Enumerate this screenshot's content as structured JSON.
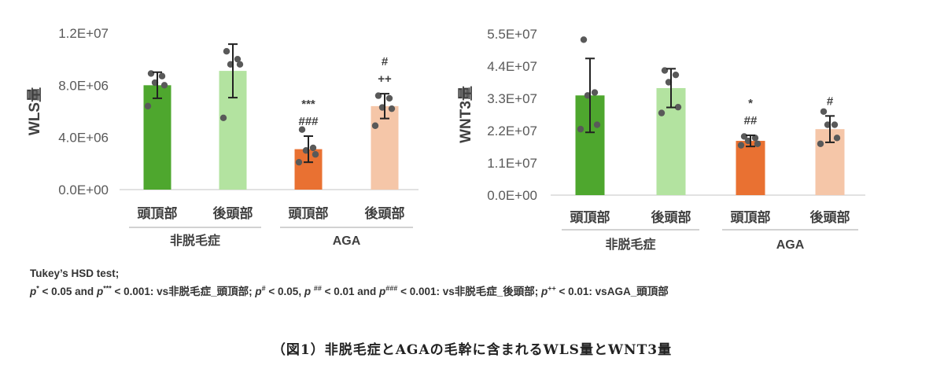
{
  "chart_data": [
    {
      "type": "bar",
      "ylabel": "WLS量",
      "ylim": [
        0,
        12000000
      ],
      "yticks": [
        "0.0E+00",
        "4.0E+06",
        "8.0E+06",
        "1.2E+07"
      ],
      "ytick_values": [
        0,
        4000000,
        8000000,
        12000000
      ],
      "categories": [
        "頭頂部",
        "後頭部",
        "頭頂部",
        "後頭部"
      ],
      "groups": [
        {
          "label": "非脱毛症",
          "span": [
            0,
            1
          ]
        },
        {
          "label": "AGA",
          "span": [
            2,
            3
          ]
        }
      ],
      "values": [
        8000000,
        9100000,
        3100000,
        6400000
      ],
      "errors": [
        1000000,
        2050000,
        1000000,
        950000
      ],
      "points": [
        [
          8900000,
          8700000,
          8200000,
          8000000,
          6400000
        ],
        [
          10600000,
          10000000,
          9600000,
          9600000,
          5500000
        ],
        [
          4600000,
          3200000,
          3000000,
          2700000,
          2100000
        ],
        [
          7200000,
          7000000,
          6300000,
          6200000,
          4900000
        ]
      ],
      "colors": [
        "#4ea72e",
        "#b3e3a0",
        "#e97132",
        "#f5c6a8"
      ],
      "annotations": [
        [],
        [],
        [
          "***",
          "###"
        ],
        [
          "#",
          "++"
        ]
      ]
    },
    {
      "type": "bar",
      "ylabel": "WNT3量",
      "ylim": [
        0,
        55000000
      ],
      "yticks": [
        "0.0E+00",
        "1.1E+07",
        "2.2E+07",
        "3.3E+07",
        "4.4E+07",
        "5.5E+07"
      ],
      "ytick_values": [
        0,
        11000000,
        22000000,
        33000000,
        44000000,
        55000000
      ],
      "categories": [
        "頭頂部",
        "後頭部",
        "頭頂部",
        "後頭部"
      ],
      "groups": [
        {
          "label": "非脱毛症",
          "span": [
            0,
            1
          ]
        },
        {
          "label": "AGA",
          "span": [
            2,
            3
          ]
        }
      ],
      "values": [
        34000000,
        36500000,
        18500000,
        22500000
      ],
      "errors": [
        12600000,
        6600000,
        1900000,
        4500000
      ],
      "points": [
        [
          53000000,
          35000000,
          34000000,
          24000000,
          22500000
        ],
        [
          42500000,
          41000000,
          38500000,
          30000000,
          28000000
        ],
        [
          20000000,
          19500000,
          18500000,
          17500000,
          17000000
        ],
        [
          28500000,
          24000000,
          24000000,
          19500000,
          17500000
        ]
      ],
      "colors": [
        "#4ea72e",
        "#b3e3a0",
        "#e97132",
        "#f5c6a8"
      ],
      "annotations": [
        [],
        [],
        [
          "*",
          "##"
        ],
        [
          "#"
        ]
      ]
    }
  ],
  "notes": {
    "line1": "Tukey’s HSD test;",
    "line2": "p* < 0.05 and p*** < 0.001: vs非脱毛症_頭頂部; p# < 0.05, p ## < 0.01 and p### < 0.001: vs非脱毛症_後頭部; p++ < 0.01: vsAGA_頭頂部"
  },
  "caption": "（図1）非脱毛症とAGAの毛幹に含まれるWLS量とWNT3量"
}
